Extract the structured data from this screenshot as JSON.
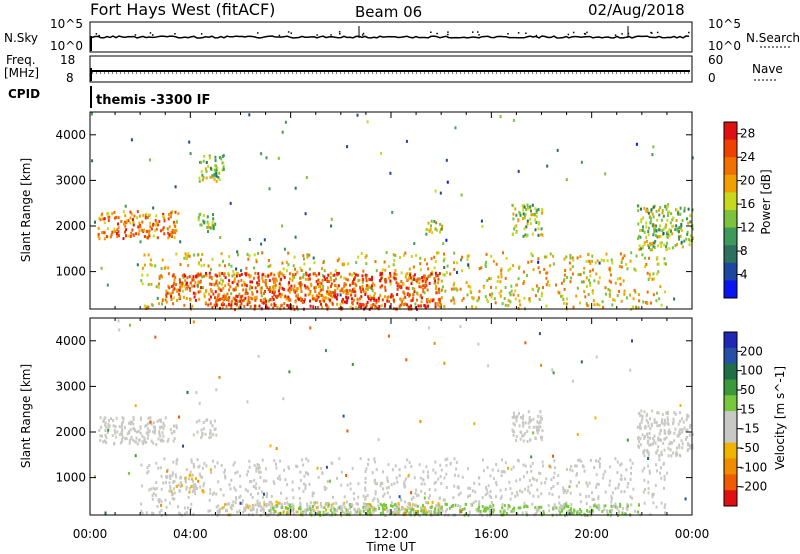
{
  "header": {
    "station": "Fort Hays West (fitACF)",
    "beam": "Beam 06",
    "date": "02/Aug/2018"
  },
  "top_panels": {
    "nsky_label": "N.Sky",
    "nsky_ticks": [
      "10^5",
      "10^0"
    ],
    "nsearch_label": "N.Search",
    "nsearch_ticks": [
      "10^5",
      "10^0"
    ],
    "freq_label_line1": "Freq.",
    "freq_label_line2": "[MHz]",
    "freq_ticks": [
      "18",
      "8"
    ],
    "nave_label": "Nave",
    "nave_ticks": [
      "60",
      "0"
    ],
    "cpid_label": "CPID",
    "cpid_text": "themis -3300 IF"
  },
  "colors": {
    "power_scale": [
      "#0a14f0",
      "#1e46a0",
      "#2e7060",
      "#3c9a5a",
      "#7cc23c",
      "#c8d81c",
      "#f0a000",
      "#f07000",
      "#f04000",
      "#e01010"
    ],
    "velocity_scale": [
      "#1e28b4",
      "#2650a8",
      "#1e6e46",
      "#3a9a3a",
      "#78c83c",
      "#c8c8c4",
      "#c8c8c4",
      "#f0b400",
      "#f08c00",
      "#f05a00",
      "#e01010"
    ]
  },
  "chart_data": [
    {
      "type": "heatmap",
      "title": "Power",
      "xlabel": "Time UT",
      "ylabel": "Slant Range [km]",
      "x_ticks": [
        "00:00",
        "04:00",
        "08:00",
        "12:00",
        "16:00",
        "20:00",
        "00:00"
      ],
      "y_ticks": [
        "1000",
        "2000",
        "3000",
        "4000"
      ],
      "ylim": [
        180,
        4500
      ],
      "xlim_hours": [
        0,
        24
      ],
      "colorbar": {
        "label": "Power [dB]",
        "ticks": [
          "4",
          "8",
          "12",
          "16",
          "20",
          "24",
          "28"
        ],
        "range": [
          0,
          30
        ]
      },
      "regions": [
        {
          "t": [
            0.3,
            3.5
          ],
          "r": [
            1750,
            2350
          ],
          "value": 22
        },
        {
          "t": [
            4.2,
            5.0
          ],
          "r": [
            1900,
            2300
          ],
          "value": 14
        },
        {
          "t": [
            4.3,
            5.3
          ],
          "r": [
            3000,
            3600
          ],
          "value": 14
        },
        {
          "t": [
            2.0,
            23.0
          ],
          "r": [
            200,
            1450
          ],
          "value": 18
        },
        {
          "t": [
            3.0,
            14.0
          ],
          "r": [
            400,
            1000
          ],
          "value": 24
        },
        {
          "t": [
            13.2,
            14.0
          ],
          "r": [
            1850,
            2150
          ],
          "value": 16
        },
        {
          "t": [
            16.8,
            18.0
          ],
          "r": [
            1800,
            2500
          ],
          "value": 14
        },
        {
          "t": [
            21.8,
            24.0
          ],
          "r": [
            1500,
            2500
          ],
          "value": 14
        },
        {
          "t": [
            4.5,
            14.0
          ],
          "r": [
            200,
            450
          ],
          "value": 26
        }
      ]
    },
    {
      "type": "heatmap",
      "title": "Velocity",
      "xlabel": "Time UT",
      "ylabel": "Slant Range [km]",
      "x_ticks": [
        "00:00",
        "04:00",
        "08:00",
        "12:00",
        "16:00",
        "20:00",
        "00:00"
      ],
      "y_ticks": [
        "1000",
        "2000",
        "3000",
        "4000"
      ],
      "ylim": [
        180,
        4500
      ],
      "xlim_hours": [
        0,
        24
      ],
      "colorbar": {
        "label": "Velocity [m s^-1]",
        "ticks": [
          "200",
          "100",
          "50",
          "15",
          "-15",
          "-50",
          "-100",
          "-200"
        ],
        "range": [
          -250,
          250
        ]
      },
      "regions": [
        {
          "t": [
            0.3,
            3.5
          ],
          "r": [
            1750,
            2350
          ],
          "value": 0
        },
        {
          "t": [
            4.2,
            5.0
          ],
          "r": [
            1900,
            2300
          ],
          "value": 0
        },
        {
          "t": [
            2.0,
            23.0
          ],
          "r": [
            200,
            1450
          ],
          "value": -5
        },
        {
          "t": [
            3.0,
            4.5
          ],
          "r": [
            700,
            1100
          ],
          "value": -60
        },
        {
          "t": [
            5.0,
            14.0
          ],
          "r": [
            200,
            500
          ],
          "value": -60
        },
        {
          "t": [
            7.0,
            22.0
          ],
          "r": [
            200,
            450
          ],
          "value": 30
        },
        {
          "t": [
            16.8,
            18.0
          ],
          "r": [
            1800,
            2500
          ],
          "value": 0
        },
        {
          "t": [
            21.8,
            24.0
          ],
          "r": [
            1500,
            2500
          ],
          "value": 0
        }
      ]
    }
  ]
}
